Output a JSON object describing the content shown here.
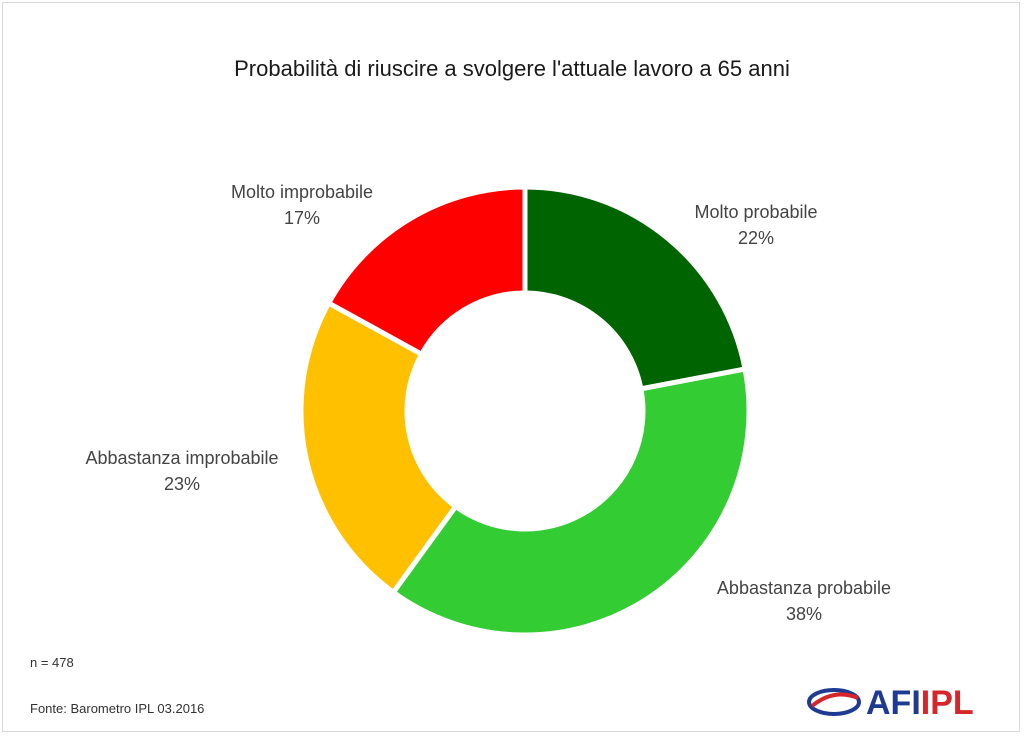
{
  "chart_data": {
    "type": "pie",
    "title": "Probabilità di riuscire a svolgere l'attuale lavoro a 65 anni",
    "slices": [
      {
        "label": "Molto probabile",
        "value": 22,
        "display": "22%",
        "color": "#006400"
      },
      {
        "label": "Abbastanza probabile",
        "value": 38,
        "display": "38%",
        "color": "#33cc33"
      },
      {
        "label": "Abbastanza improbabile",
        "value": 23,
        "display": "23%",
        "color": "#ffc000"
      },
      {
        "label": "Molto improbabile",
        "value": 17,
        "display": "17%",
        "color": "#ff0000"
      }
    ],
    "donut": true,
    "legend": "none"
  },
  "notes": {
    "sample": "n = 478",
    "source": "Fonte: Barometro IPL 03.2016"
  },
  "logo": {
    "text": "AFIIPL",
    "icon": "afi-ipl-logo-swoosh",
    "colors": {
      "blue": "#1f3a93",
      "red": "#d6262c"
    }
  }
}
